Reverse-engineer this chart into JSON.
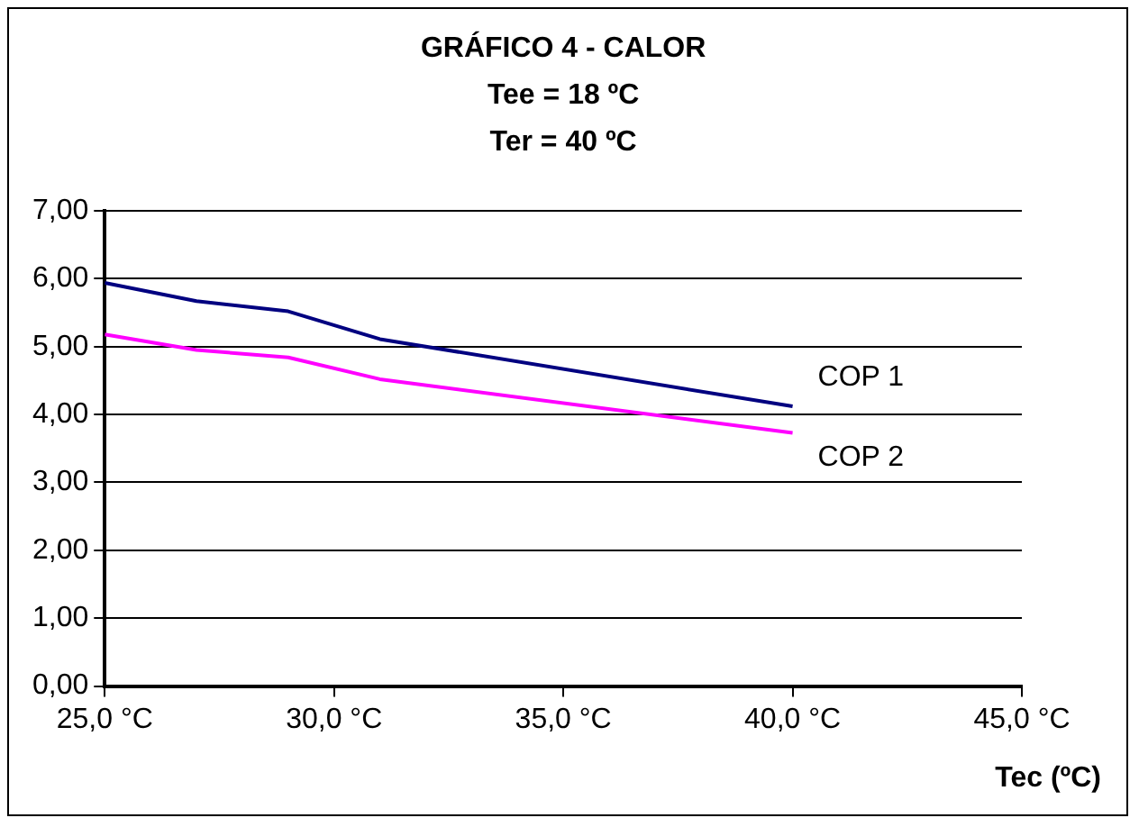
{
  "chart_data": {
    "type": "line",
    "title": [
      "GRÁFICO 4 - CALOR",
      "Tee = 18 ºC",
      "Ter = 40 ºC"
    ],
    "xlabel": "Tec (ºC)",
    "x": [
      25,
      27,
      29,
      31,
      40
    ],
    "series": [
      {
        "name": "COP 1",
        "color": "#000080",
        "values": [
          5.94,
          5.67,
          5.52,
          5.11,
          4.12
        ]
      },
      {
        "name": "COP 2",
        "color": "#ff00ff",
        "values": [
          5.18,
          4.95,
          4.84,
          4.52,
          3.73
        ]
      }
    ],
    "xlim": [
      25,
      45
    ],
    "xticks": [
      {
        "value": 25,
        "label": "25,0 °C"
      },
      {
        "value": 30,
        "label": "30,0 °C"
      },
      {
        "value": 35,
        "label": "35,0 °C"
      },
      {
        "value": 40,
        "label": "40,0 °C"
      },
      {
        "value": 45,
        "label": "45,0 °C"
      }
    ],
    "ylim": [
      0,
      7
    ],
    "yticks": [
      {
        "value": 0,
        "label": "0,00"
      },
      {
        "value": 1,
        "label": "1,00"
      },
      {
        "value": 2,
        "label": "2,00"
      },
      {
        "value": 3,
        "label": "3,00"
      },
      {
        "value": 4,
        "label": "4,00"
      },
      {
        "value": 5,
        "label": "5,00"
      },
      {
        "value": 6,
        "label": "6,00"
      },
      {
        "value": 7,
        "label": "7,00"
      }
    ],
    "grid": "y",
    "legend": false,
    "marker": "none",
    "line_style": "solid"
  }
}
